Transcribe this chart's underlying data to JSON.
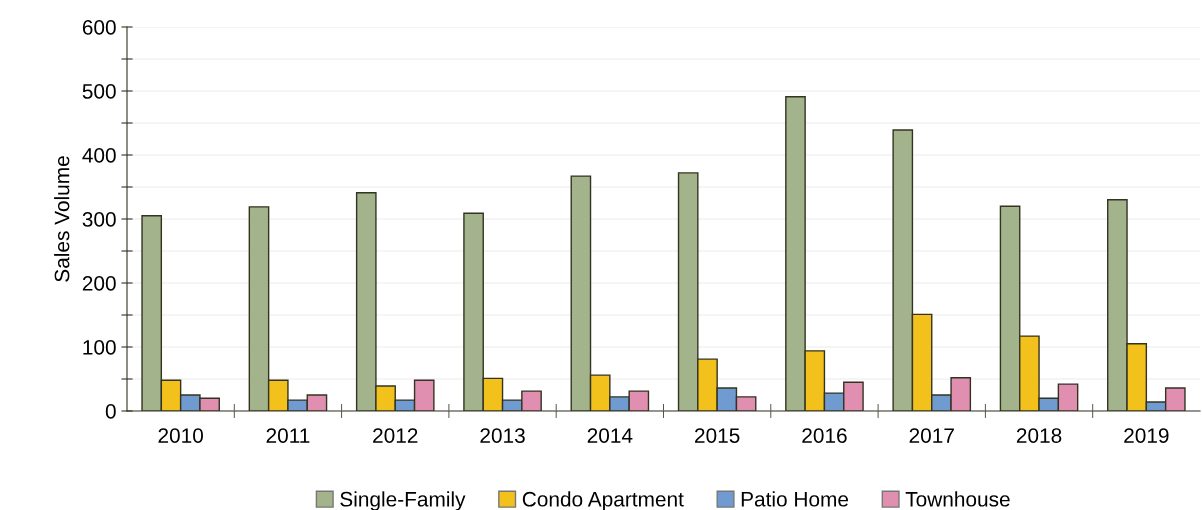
{
  "chart_data": {
    "type": "bar",
    "ylabel": "Sales Volume",
    "categories": [
      "2010",
      "2011",
      "2012",
      "2013",
      "2014",
      "2015",
      "2016",
      "2017",
      "2018",
      "2019"
    ],
    "series": [
      {
        "name": "Single-Family",
        "color": "#a3b38c",
        "values": [
          305,
          319,
          341,
          309,
          367,
          372,
          491,
          439,
          320,
          330
        ]
      },
      {
        "name": "Condo Apartment",
        "color": "#f2c11b",
        "values": [
          48,
          48,
          39,
          51,
          56,
          81,
          94,
          151,
          117,
          105
        ]
      },
      {
        "name": "Patio Home",
        "color": "#6f9bd1",
        "values": [
          25,
          17,
          17,
          17,
          22,
          36,
          28,
          25,
          20,
          14
        ]
      },
      {
        "name": "Townhouse",
        "color": "#e08fb0",
        "values": [
          20,
          25,
          48,
          31,
          31,
          22,
          45,
          52,
          42,
          36
        ]
      }
    ],
    "ylim": [
      0,
      600
    ],
    "yticks": [
      0,
      {
        "value": 50,
        "label": null
      },
      100,
      {
        "value": 150,
        "label": null
      },
      200,
      {
        "value": 250,
        "label": null
      },
      300,
      {
        "value": 350,
        "label": null
      },
      400,
      {
        "value": 450,
        "label": null
      },
      500,
      {
        "value": 550,
        "label": null
      },
      600
    ],
    "grid": "y",
    "legend": "bottom"
  }
}
